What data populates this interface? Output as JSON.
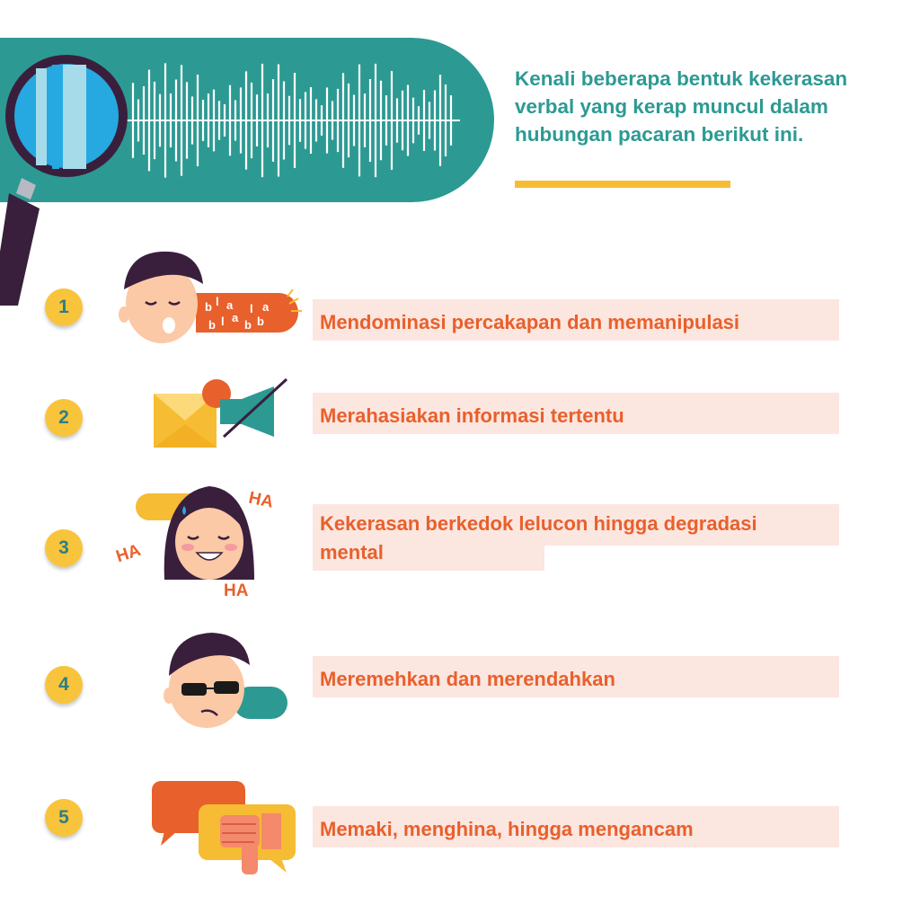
{
  "header": {
    "headline": "Kenali beberapa bentuk kekerasan verbal yang kerap muncul dalam hubungan pacaran berikut ini."
  },
  "items": [
    {
      "number": "1",
      "label": "Mendominasi percakapan dan memanipulasi",
      "icon": "talking-face-icon"
    },
    {
      "number": "2",
      "label": "Merahasiakan informasi tertentu",
      "icon": "envelope-muted-speaker-icon"
    },
    {
      "number": "3",
      "label": "Kekerasan berkedok lelucon hingga degradasi mental",
      "icon": "laughing-woman-icon"
    },
    {
      "number": "4",
      "label": "Meremehkan dan merendahkan",
      "icon": "sunglasses-man-icon"
    },
    {
      "number": "5",
      "label": "Memaki, menghina, hingga mengancam",
      "icon": "thumbs-down-speech-icon"
    }
  ],
  "illustration_text": {
    "bla": [
      "b",
      "l",
      "a",
      "b",
      "l",
      "a",
      "b",
      "b",
      "l",
      "a"
    ],
    "ha": [
      "HA",
      "HA",
      "HA"
    ]
  },
  "colors": {
    "teal": "#2c9a93",
    "orange": "#e8602c",
    "yellow": "#f8c43b",
    "label_bg": "#fce6e0",
    "dark_purple": "#3a1f3d"
  }
}
